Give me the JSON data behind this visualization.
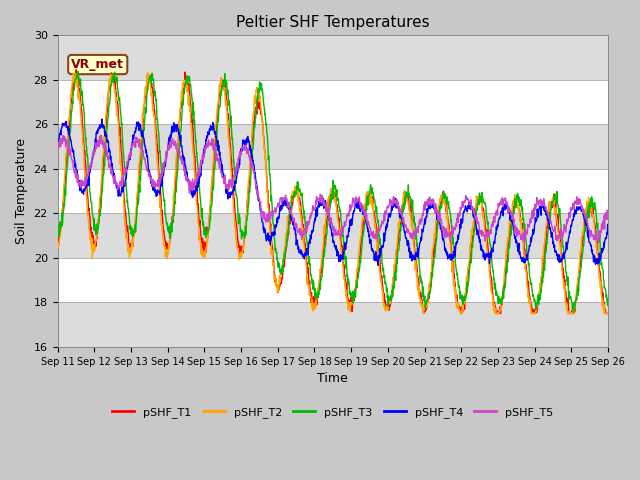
{
  "title": "Peltier SHF Temperatures",
  "xlabel": "Time",
  "ylabel": "Soil Temperature",
  "ylim": [
    16,
    30
  ],
  "yticks": [
    16,
    18,
    20,
    22,
    24,
    26,
    28,
    30
  ],
  "fig_bg": "#c8c8c8",
  "plot_bg": "#f0f0f0",
  "band_light": "#ffffff",
  "band_dark": "#dcdcdc",
  "annotation_text": "VR_met",
  "annotation_bg": "#ffffcc",
  "annotation_border": "#8B4513",
  "annotation_text_color": "#8B0000",
  "series": [
    "pSHF_T1",
    "pSHF_T2",
    "pSHF_T3",
    "pSHF_T4",
    "pSHF_T5"
  ],
  "colors": [
    "#ff0000",
    "#ffa500",
    "#00bb00",
    "#0000ff",
    "#cc44cc"
  ],
  "linewidth": 1.0
}
